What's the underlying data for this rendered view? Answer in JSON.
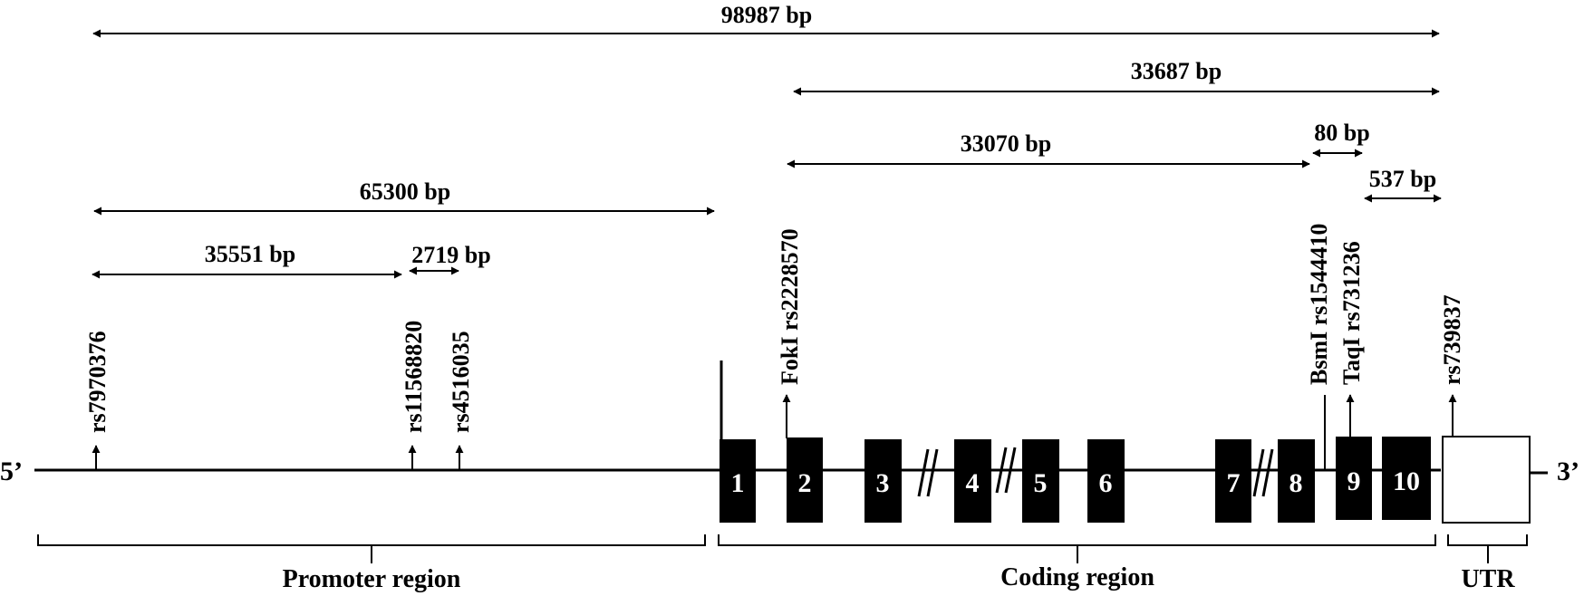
{
  "ends": {
    "five": "5’",
    "three": "3’"
  },
  "distances": {
    "total": "98987 bp",
    "coding_span": "33687 bp",
    "foki_bsmi": "33070 bp",
    "bsmi_taqi": "80 bp",
    "taqi_utr": "537 bp",
    "promoter_span": "65300 bp",
    "rs797_rs115": "35551 bp",
    "rs115_rs451": "2719 bp"
  },
  "snps": {
    "rs7970376": "rs7970376",
    "rs11568820": "rs11568820",
    "rs4516035": "rs4516035",
    "foki": "FokI rs2228570",
    "bsmi": "BsmI rs1544410",
    "taqi": "TaqI rs731236",
    "rs739837": "rs739837"
  },
  "exons": [
    "1",
    "2",
    "3",
    "4",
    "5",
    "6",
    "7",
    "8",
    "9",
    "10"
  ],
  "regions": {
    "promoter": "Promoter region",
    "coding": "Coding region",
    "utr": "UTR"
  }
}
